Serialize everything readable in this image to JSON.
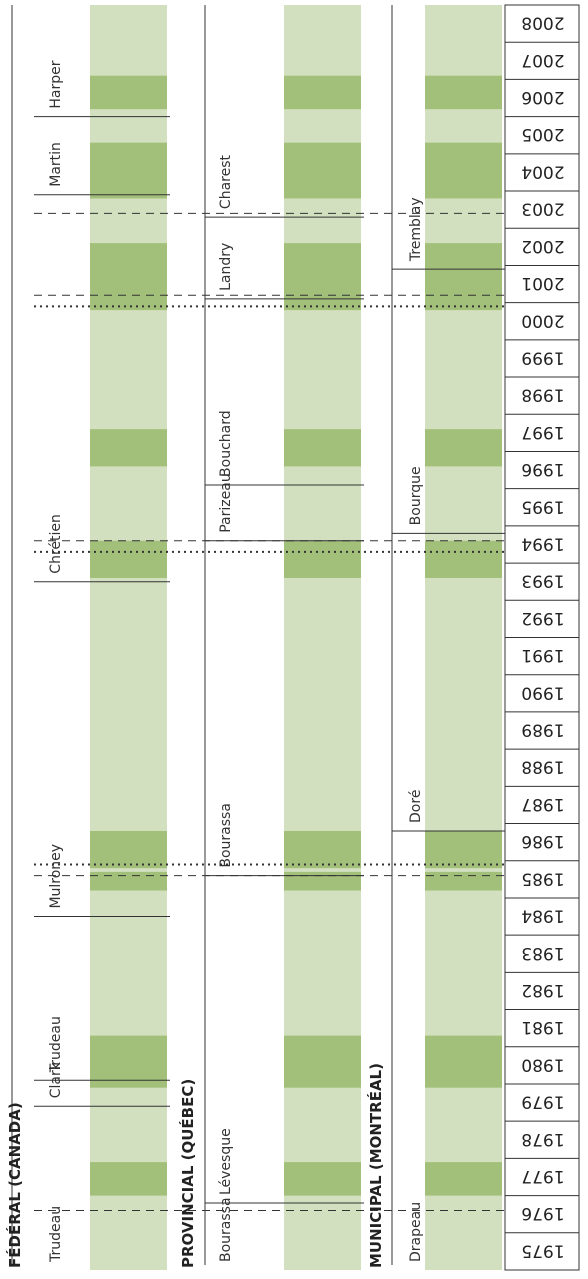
{
  "years": [
    "1975",
    "1976",
    "1977",
    "1978",
    "1979",
    "1980",
    "1981",
    "1982",
    "1983",
    "1984",
    "1985",
    "1986",
    "1987",
    "1988",
    "1989",
    "1990",
    "1991",
    "1992",
    "1993",
    "1994",
    "1995",
    "1996",
    "1997",
    "1998",
    "1999",
    "2000",
    "2001",
    "2002",
    "2003",
    "2004",
    "2005",
    "2006",
    "2007",
    "2008"
  ],
  "headings": {
    "federal": "FÉDÉRAL (CANADA)",
    "provincial": "PROVINCIAL (QUÉBEC)",
    "municipal": "MUNICIPAL (MONTRÉAL)"
  },
  "colors": {
    "light_band": "#d2e0bf",
    "dark_band": "#a3c07a",
    "line": "#333333"
  },
  "election_years": [
    1976.5,
    1979.5,
    1985.8,
    1994.5,
    1999.9,
    2003.4
  ],
  "bands": {
    "federal": [
      {
        "year": 1976.7,
        "shade": "dark",
        "line": "dashed"
      },
      {
        "year": 1980.5,
        "shade": "dark",
        "line": "none"
      },
      {
        "year": 1985.7,
        "shade": "dark",
        "line": "mixed"
      },
      {
        "year": 1994.5,
        "shade": "dark",
        "line": "dotted"
      },
      {
        "year": 1998.5,
        "shade": "dark",
        "line": "none"
      },
      {
        "year": 2001.8,
        "shade": "dark",
        "line": "dotted"
      },
      {
        "year": 2003.6,
        "shade": "dark",
        "line": "dashed"
      },
      {
        "year": 2006.7,
        "shade": "dark",
        "line": "none"
      }
    ],
    "provincial": [
      {
        "year": 1976.7,
        "shade": "dark",
        "line": "none"
      },
      {
        "year": 1980.5,
        "shade": "dark",
        "line": "none"
      },
      {
        "year": 1985.7,
        "shade": "dark",
        "line": "mixed"
      },
      {
        "year": 1994.5,
        "shade": "dark",
        "line": "dotted"
      },
      {
        "year": 1998.5,
        "shade": "dark",
        "line": "none"
      },
      {
        "year": 2001.8,
        "shade": "dark",
        "line": "dotted"
      },
      {
        "year": 2003.6,
        "shade": "dark",
        "line": "dashed"
      },
      {
        "year": 2006.7,
        "shade": "dark",
        "line": "none"
      }
    ],
    "municipal": [
      {
        "year": 1976.7,
        "shade": "dark",
        "line": "none"
      },
      {
        "year": 1980.5,
        "shade": "dark",
        "line": "none"
      },
      {
        "year": 1985.7,
        "shade": "dark",
        "line": "mixed"
      },
      {
        "year": 1994.5,
        "shade": "dark",
        "line": "dotted"
      },
      {
        "year": 1998.5,
        "shade": "dark",
        "line": "none"
      },
      {
        "year": 2001.8,
        "shade": "dark",
        "line": "dotted"
      },
      {
        "year": 2003.6,
        "shade": "dark",
        "line": "dashed"
      },
      {
        "year": 2006.7,
        "shade": "dark",
        "line": "none"
      }
    ]
  },
  "leaders": {
    "federal": [
      {
        "name": "Trudeau",
        "from": 1975.0,
        "to": 1979.4
      },
      {
        "name": "Clark",
        "from": 1979.4,
        "to": 1980.1
      },
      {
        "name": "Trudeau",
        "from": 1980.1,
        "to": 1984.5
      },
      {
        "name": "Mulroney",
        "from": 1984.5,
        "to": 1993.5
      },
      {
        "name": "Chrétien",
        "from": 1993.5,
        "to": 2003.9
      },
      {
        "name": "Martin",
        "from": 2003.9,
        "to": 2006.0
      },
      {
        "name": "Harper",
        "from": 2006.0,
        "to": 2009.0
      }
    ],
    "provincial": [
      {
        "name": "Bourassa",
        "from": 1975.0,
        "to": 1976.8
      },
      {
        "name": "Lévesque",
        "from": 1976.8,
        "to": 1985.6
      },
      {
        "name": "Bourassa",
        "from": 1985.6,
        "to": 1994.6
      },
      {
        "name": "Parizeau",
        "from": 1994.6,
        "to": 1996.1
      },
      {
        "name": "Bouchard",
        "from": 1996.1,
        "to": 2001.1
      },
      {
        "name": "Landry",
        "from": 2001.1,
        "to": 2003.3
      },
      {
        "name": "Charest",
        "from": 2003.3,
        "to": 2009.0
      }
    ],
    "municipal": [
      {
        "name": "Drapeau",
        "from": 1975.0,
        "to": 1986.8
      },
      {
        "name": "Doré",
        "from": 1986.8,
        "to": 1994.8
      },
      {
        "name": "Bourque",
        "from": 1994.8,
        "to": 2001.9
      },
      {
        "name": "Tremblay",
        "from": 2001.9,
        "to": 2009.0
      }
    ]
  }
}
